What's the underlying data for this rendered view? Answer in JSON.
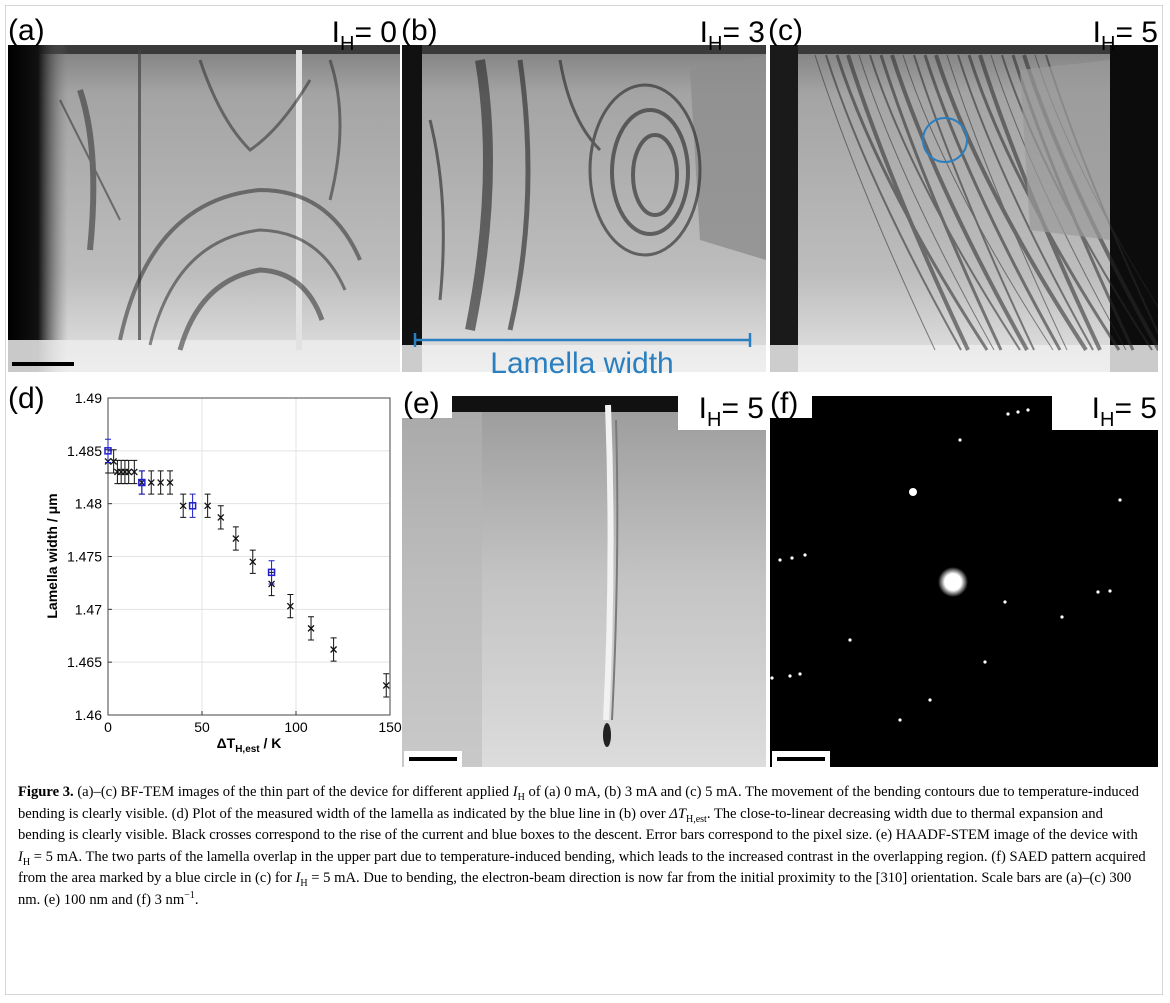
{
  "panels": [
    {
      "label": "(a)",
      "current": {
        "symbol": "I",
        "sub": "H",
        "value": "= 0"
      }
    },
    {
      "label": "(b)",
      "current": {
        "symbol": "I",
        "sub": "H",
        "value": "= 3"
      },
      "annotation": "Lamella width"
    },
    {
      "label": "(c)",
      "current": {
        "symbol": "I",
        "sub": "H",
        "value": "= 5"
      }
    },
    {
      "label": "(d)"
    },
    {
      "label": "(e)",
      "current": {
        "symbol": "I",
        "sub": "H",
        "value": "= 5"
      }
    },
    {
      "label": "(f)",
      "current": {
        "symbol": "I",
        "sub": "H",
        "value": "= 5"
      }
    }
  ],
  "chart_data": {
    "type": "scatter",
    "x_label": {
      "main": "ΔT",
      "sub": "H,est",
      "unit": " / K"
    },
    "y_label": "Lamella width / μm",
    "xlim": [
      0,
      150
    ],
    "ylim": [
      1.46,
      1.49
    ],
    "xticks": [
      0,
      50,
      100,
      150
    ],
    "yticks": [
      1.46,
      1.465,
      1.47,
      1.475,
      1.48,
      1.485,
      1.49
    ],
    "grid": true,
    "series": [
      {
        "color": "#111111",
        "marker": "cross",
        "x": [
          0,
          3,
          5,
          7,
          9,
          11,
          14,
          18,
          23,
          28,
          33,
          40,
          53,
          60,
          68,
          77,
          87,
          97,
          108,
          120,
          148
        ],
        "values": [
          1.484,
          1.484,
          1.483,
          1.483,
          1.483,
          1.483,
          1.483,
          1.482,
          1.482,
          1.482,
          1.482,
          1.4798,
          1.4798,
          1.4787,
          1.4767,
          1.4745,
          1.4724,
          1.4703,
          1.4682,
          1.4662,
          1.4628
        ],
        "error": 0.0011
      },
      {
        "color": "#1f1fd0",
        "marker": "square",
        "x": [
          0,
          18,
          45,
          87
        ],
        "values": [
          1.485,
          1.482,
          1.4798,
          1.4735
        ],
        "error": 0.0011
      }
    ]
  },
  "caption": {
    "runs": [
      "Figure 3.",
      " (a)–(c) BF-TEM images of the thin part of the device for different applied ",
      "I",
      "H",
      " of (a) 0 mA, (b) 3 mA and (c) 5 mA. The movement of the bending contours due to temperature-induced bending is clearly visible. (d) Plot of the measured width of the lamella as indicated by the blue line in (b) over ",
      "ΔT",
      "H,est",
      ". The close-to-linear decreasing width due to thermal expansion and bending is clearly visible. Black crosses correspond to the rise of the current and blue boxes to the descent. Error bars correspond to the pixel size. (e) HAADF-STEM image of the device with ",
      "I",
      "H",
      " = 5 mA. The two parts of the lamella overlap in the upper part due to temperature-induced bending, which leads to the increased contrast in the overlapping region. (f) SAED pattern acquired from the area marked by a blue circle in (c) for ",
      "I",
      "H",
      " = 5 mA. Due to bending, the electron-beam direction is now far from the initial proximity to the [310] orientation. Scale bars are (a)–(c) 300 nm. (e) 100 nm and (f) 3 nm",
      "−1",
      "."
    ]
  }
}
